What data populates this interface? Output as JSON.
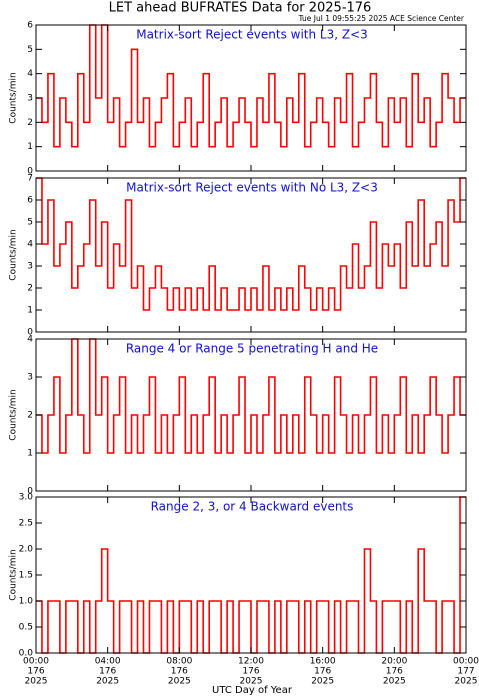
{
  "title": "LET ahead BUFRATES Data for 2025-176",
  "subtitle": "Tue Jul  1 09:55:25 2025 ACE Science Center",
  "xlabel": "UTC Day of Year",
  "chart_data": [
    {
      "type": "line",
      "title": "Matrix-sort Reject events with L3, Z<3",
      "ylabel": "Counts/min",
      "xlim": [
        0,
        1440
      ],
      "ylim": [
        0,
        6
      ],
      "yticks": [
        0,
        1,
        2,
        3,
        4,
        5,
        6
      ],
      "x": [
        0,
        20,
        40,
        60,
        80,
        100,
        120,
        140,
        160,
        180,
        200,
        220,
        240,
        260,
        280,
        300,
        320,
        340,
        360,
        380,
        400,
        420,
        440,
        460,
        480,
        500,
        520,
        540,
        560,
        580,
        600,
        620,
        640,
        660,
        680,
        700,
        720,
        740,
        760,
        780,
        800,
        820,
        840,
        860,
        880,
        900,
        920,
        940,
        960,
        980,
        1000,
        1020,
        1040,
        1060,
        1080,
        1100,
        1120,
        1140,
        1160,
        1180,
        1200,
        1220,
        1240,
        1260,
        1280,
        1300,
        1320,
        1340,
        1360,
        1380,
        1400,
        1420
      ],
      "series": [
        {
          "color": "#ff0000",
          "values": [
            3,
            2,
            4,
            1,
            3,
            2,
            1,
            4,
            2,
            6,
            3,
            6,
            2,
            3,
            1,
            2,
            5,
            2,
            3,
            1,
            2,
            3,
            4,
            1,
            2,
            3,
            1,
            2,
            4,
            1,
            2,
            3,
            1,
            2,
            3,
            2,
            1,
            3,
            2,
            4,
            2,
            1,
            3,
            2,
            4,
            1,
            2,
            3,
            2,
            1,
            3,
            2,
            4,
            1,
            2,
            3,
            4,
            2,
            1,
            3,
            2,
            3,
            1,
            4,
            2,
            3,
            1,
            2,
            4,
            3,
            2,
            3
          ]
        }
      ]
    },
    {
      "type": "line",
      "title": "Matrix-sort Reject events with No L3, Z<3",
      "ylabel": "Counts/min",
      "xlim": [
        0,
        1440
      ],
      "ylim": [
        0,
        7
      ],
      "yticks": [
        0,
        1,
        2,
        3,
        4,
        5,
        6,
        7
      ],
      "x": [
        0,
        20,
        40,
        60,
        80,
        100,
        120,
        140,
        160,
        180,
        200,
        220,
        240,
        260,
        280,
        300,
        320,
        340,
        360,
        380,
        400,
        420,
        440,
        460,
        480,
        500,
        520,
        540,
        560,
        580,
        600,
        620,
        640,
        660,
        680,
        700,
        720,
        740,
        760,
        780,
        800,
        820,
        840,
        860,
        880,
        900,
        920,
        940,
        960,
        980,
        1000,
        1020,
        1040,
        1060,
        1080,
        1100,
        1120,
        1140,
        1160,
        1180,
        1200,
        1220,
        1240,
        1260,
        1280,
        1300,
        1320,
        1340,
        1360,
        1380,
        1400,
        1420
      ],
      "series": [
        {
          "color": "#ff0000",
          "values": [
            7,
            4,
            6,
            3,
            4,
            5,
            2,
            3,
            4,
            6,
            3,
            5,
            2,
            4,
            3,
            6,
            2,
            3,
            1,
            2,
            3,
            2,
            1,
            2,
            1,
            2,
            1,
            2,
            1,
            3,
            1,
            2,
            1,
            1,
            2,
            1,
            2,
            1,
            3,
            1,
            2,
            1,
            2,
            1,
            3,
            2,
            1,
            2,
            1,
            2,
            1,
            3,
            2,
            4,
            2,
            3,
            5,
            2,
            4,
            3,
            4,
            2,
            5,
            3,
            6,
            3,
            4,
            5,
            3,
            6,
            5,
            7
          ]
        }
      ]
    },
    {
      "type": "line",
      "title": "Range 4 or Range 5 penetrating H and He",
      "ylabel": "Counts/min",
      "xlim": [
        0,
        1440
      ],
      "ylim": [
        0,
        4
      ],
      "yticks": [
        0,
        1,
        2,
        3,
        4
      ],
      "x": [
        0,
        20,
        40,
        60,
        80,
        100,
        120,
        140,
        160,
        180,
        200,
        220,
        240,
        260,
        280,
        300,
        320,
        340,
        360,
        380,
        400,
        420,
        440,
        460,
        480,
        500,
        520,
        540,
        560,
        580,
        600,
        620,
        640,
        660,
        680,
        700,
        720,
        740,
        760,
        780,
        800,
        820,
        840,
        860,
        880,
        900,
        920,
        940,
        960,
        980,
        1000,
        1020,
        1040,
        1060,
        1080,
        1100,
        1120,
        1140,
        1160,
        1180,
        1200,
        1220,
        1240,
        1260,
        1280,
        1300,
        1320,
        1340,
        1360,
        1380,
        1400,
        1420
      ],
      "series": [
        {
          "color": "#ff0000",
          "values": [
            2,
            1,
            2,
            3,
            1,
            2,
            4,
            2,
            1,
            4,
            2,
            3,
            1,
            2,
            3,
            1,
            2,
            1,
            2,
            3,
            1,
            2,
            1,
            2,
            3,
            1,
            2,
            1,
            2,
            3,
            1,
            2,
            1,
            2,
            3,
            1,
            2,
            1,
            2,
            3,
            1,
            2,
            1,
            2,
            1,
            3,
            2,
            1,
            2,
            1,
            3,
            2,
            1,
            2,
            1,
            2,
            3,
            1,
            2,
            1,
            2,
            3,
            1,
            2,
            1,
            2,
            3,
            2,
            1,
            2,
            3,
            2
          ]
        }
      ]
    },
    {
      "type": "line",
      "title": "Range 2, 3, or 4 Backward events",
      "ylabel": "Counts/min",
      "xlim": [
        0,
        1440
      ],
      "ylim": [
        0,
        3
      ],
      "yticks": [
        {
          "value": 0,
          "label": "0.0"
        },
        {
          "value": 0.5,
          "label": "0.5"
        },
        {
          "value": 1,
          "label": "1.0"
        },
        {
          "value": 1.5,
          "label": "1.5"
        },
        {
          "value": 2,
          "label": "2.0"
        },
        {
          "value": 2.5,
          "label": "2.5"
        },
        {
          "value": 3,
          "label": "3.0"
        }
      ],
      "xticks": [
        {
          "value": 0,
          "label": "00:00"
        },
        {
          "value": 240,
          "label": "04:00"
        },
        {
          "value": 480,
          "label": "08:00"
        },
        {
          "value": 720,
          "label": "12:00"
        },
        {
          "value": 960,
          "label": "16:00"
        },
        {
          "value": 1200,
          "label": "20:00"
        },
        {
          "value": 1440,
          "label": "00:00"
        }
      ],
      "xtick_days": [
        "176",
        "176",
        "176",
        "176",
        "176",
        "176",
        "177"
      ],
      "xtick_years": [
        "2025",
        "2025",
        "2025",
        "2025",
        "2025",
        "2025",
        "2025"
      ],
      "x": [
        0,
        20,
        40,
        60,
        80,
        100,
        120,
        140,
        160,
        180,
        200,
        220,
        240,
        260,
        280,
        300,
        320,
        340,
        360,
        380,
        400,
        420,
        440,
        460,
        480,
        500,
        520,
        540,
        560,
        580,
        600,
        620,
        640,
        660,
        680,
        700,
        720,
        740,
        760,
        780,
        800,
        820,
        840,
        860,
        880,
        900,
        920,
        940,
        960,
        980,
        1000,
        1020,
        1040,
        1060,
        1080,
        1100,
        1120,
        1140,
        1160,
        1180,
        1200,
        1220,
        1240,
        1260,
        1280,
        1300,
        1320,
        1340,
        1360,
        1380,
        1400,
        1420
      ],
      "series": [
        {
          "color": "#ff0000",
          "values": [
            1,
            0,
            1,
            1,
            0,
            1,
            1,
            0,
            1,
            0,
            1,
            2,
            1,
            0,
            1,
            1,
            0,
            1,
            0,
            1,
            1,
            0,
            1,
            0,
            1,
            1,
            0,
            1,
            0,
            1,
            1,
            0,
            1,
            0,
            1,
            1,
            0,
            1,
            1,
            0,
            1,
            0,
            1,
            1,
            0,
            1,
            0,
            1,
            1,
            0,
            1,
            0,
            1,
            1,
            0,
            2,
            1,
            0,
            1,
            1,
            1,
            0,
            1,
            0,
            2,
            1,
            1,
            0,
            1,
            1,
            0,
            3
          ]
        }
      ]
    }
  ]
}
